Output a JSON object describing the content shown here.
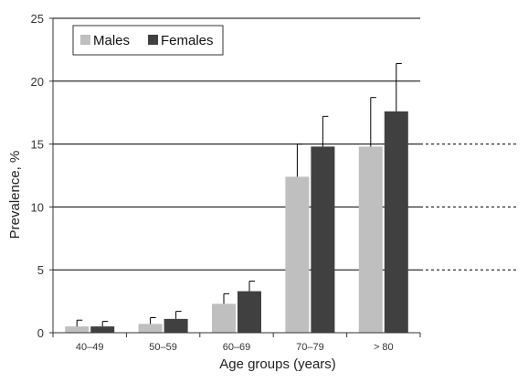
{
  "chart_data": {
    "type": "bar",
    "categories": [
      "40–49",
      "50–59",
      "60–69",
      "70–79",
      "> 80"
    ],
    "series": [
      {
        "name": "Males",
        "color": "#bfbfbf",
        "values": [
          0.5,
          0.7,
          2.3,
          12.4,
          14.8
        ],
        "error_upper": [
          1.0,
          1.2,
          3.1,
          15.0,
          18.7
        ]
      },
      {
        "name": "Females",
        "color": "#404040",
        "values": [
          0.5,
          1.1,
          3.3,
          14.8,
          17.6
        ],
        "error_upper": [
          0.9,
          1.7,
          4.1,
          17.2,
          21.4
        ]
      }
    ],
    "title": "",
    "xlabel": "Age groups (years)",
    "ylabel": "Prevalence, %",
    "ylim": [
      0,
      25
    ],
    "yticks": [
      "0",
      "5",
      "10",
      "15",
      "20",
      "25"
    ],
    "grid": true,
    "dashed_reference_lines_beyond_axis": [
      5,
      10,
      15
    ],
    "legend_position": "top-left"
  }
}
